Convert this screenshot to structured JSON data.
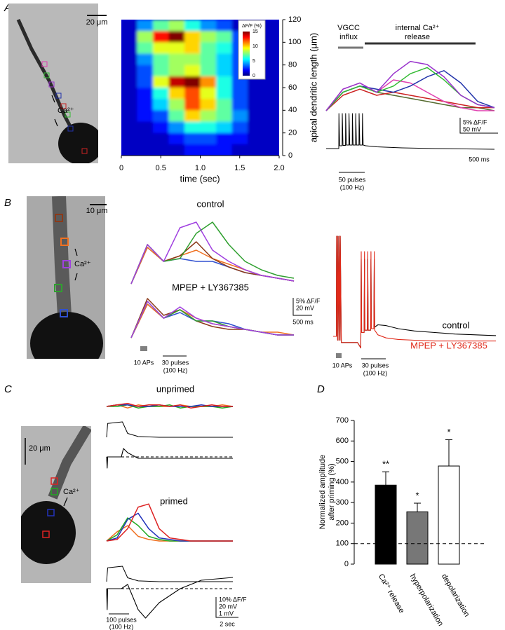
{
  "panels": [
    "A",
    "B",
    "C",
    "D"
  ],
  "images": [
    {
      "scalebar": "20 μm",
      "roi_label": "Ca²⁺"
    },
    {
      "scalebar": "10 μm",
      "roi_label": "Ca²⁺"
    },
    {
      "scalebar": "20 μm",
      "roi_label": "Ca²⁺"
    }
  ],
  "chart_data": [
    {
      "type": "heatmap",
      "xlabel": "time (sec)",
      "ylabel": "apical dendritic length (μm)",
      "xlim": [
        0,
        2
      ],
      "ylim": [
        0,
        120
      ],
      "xticks": [
        0,
        0.5,
        {
          "value": 1,
          "label": "1.0"
        },
        1.5,
        {
          "value": 2,
          "label": "2.0"
        }
      ],
      "yticks": [
        0,
        20,
        40,
        60,
        80,
        100,
        120
      ],
      "x": [
        0.1,
        0.3,
        0.5,
        0.7,
        0.9,
        1.1,
        1.3,
        1.5,
        1.7,
        1.9
      ],
      "y": [
        115,
        105,
        95,
        85,
        75,
        65,
        55,
        45,
        35,
        25,
        15,
        5
      ],
      "values": [
        [
          1,
          4,
          7,
          8,
          6,
          4,
          3,
          1,
          1,
          1
        ],
        [
          1,
          8,
          13,
          15,
          10,
          8,
          7,
          3,
          1,
          1
        ],
        [
          1,
          7,
          9,
          9,
          10,
          7,
          6,
          3,
          1,
          1
        ],
        [
          1,
          4,
          7,
          8,
          8,
          7,
          5,
          3,
          1,
          1
        ],
        [
          1,
          3,
          7,
          8,
          9,
          7,
          5,
          3,
          1,
          1
        ],
        [
          1,
          3,
          9,
          14,
          15,
          11,
          6,
          3,
          1,
          1
        ],
        [
          1,
          2,
          6,
          10,
          12,
          9,
          6,
          3,
          1,
          1
        ],
        [
          1,
          2,
          5,
          8,
          12,
          10,
          7,
          3,
          1,
          1
        ],
        [
          1,
          2,
          3,
          7,
          10,
          8,
          7,
          4,
          1,
          1
        ],
        [
          1,
          1,
          2,
          4,
          6,
          6,
          5,
          3,
          1,
          1
        ],
        [
          1,
          1,
          1,
          2,
          3,
          3,
          2,
          2,
          1,
          1
        ],
        [
          1,
          1,
          1,
          1,
          2,
          2,
          2,
          1,
          1,
          1
        ]
      ],
      "colorbar": {
        "label": "ΔF/F (%)",
        "lim": [
          0,
          15
        ],
        "ticks": [
          0,
          5,
          10,
          15
        ]
      }
    },
    {
      "type": "line",
      "annotations": {
        "vgcc": [
          "VGCC",
          "influx"
        ],
        "release": [
          "internal Ca²⁺",
          "release"
        ]
      },
      "stim_label": [
        "50 pulses",
        "(100 Hz)"
      ],
      "scale_labels": [
        "5% ΔF/F",
        "50 mV",
        "500 ms"
      ],
      "x": [
        0,
        200,
        400,
        600,
        800,
        1000,
        1200,
        1400,
        1600,
        1800,
        2000
      ],
      "series": [
        {
          "color": "#556b2f",
          "values": [
            0,
            6,
            8,
            6,
            5,
            4,
            3,
            2,
            1,
            1,
            0
          ]
        },
        {
          "color": "#cc2222",
          "values": [
            0,
            5,
            7,
            5,
            6,
            5,
            4,
            3,
            2,
            1,
            1
          ]
        },
        {
          "color": "#e040b0",
          "values": [
            0,
            7,
            9,
            6,
            10,
            9,
            6,
            3,
            1,
            0,
            0
          ]
        },
        {
          "color": "#2233aa",
          "values": [
            0,
            6,
            8,
            7,
            6,
            8,
            11,
            13,
            9,
            3,
            1
          ]
        },
        {
          "color": "#33bb33",
          "values": [
            0,
            6,
            8,
            6,
            8,
            12,
            14,
            10,
            5,
            2,
            1
          ]
        },
        {
          "color": "#9933cc",
          "values": [
            0,
            7,
            9,
            6,
            12,
            16,
            15,
            11,
            5,
            2,
            1
          ]
        }
      ],
      "voltage": {
        "color": "#000000",
        "x": [
          0,
          150,
          152,
          160,
          190,
          192,
          200,
          230,
          232,
          240,
          270,
          272,
          280,
          310,
          312,
          320,
          350,
          352,
          360,
          390,
          392,
          400,
          430,
          432,
          440,
          470,
          600,
          900,
          1300,
          2000
        ],
        "values": [
          0,
          0,
          100,
          8,
          8,
          100,
          9,
          9,
          100,
          10,
          10,
          100,
          10,
          10,
          100,
          10,
          10,
          100,
          10,
          10,
          100,
          10,
          10,
          100,
          10,
          8,
          5,
          2,
          0,
          -2
        ]
      }
    },
    {
      "type": "line",
      "title": "control",
      "x": [
        0,
        400,
        800,
        1200,
        1600,
        2000,
        2400,
        2800,
        3200,
        3600,
        4000
      ],
      "series": [
        {
          "color": "#3050d0",
          "values": [
            0,
            13,
            8,
            9,
            8,
            8,
            6,
            4,
            3,
            2,
            1
          ]
        },
        {
          "color": "#f07020",
          "values": [
            0,
            13,
            8,
            10,
            12,
            9,
            7,
            5,
            3,
            2,
            1
          ]
        },
        {
          "color": "#8b3a1a",
          "values": [
            0,
            14,
            8,
            10,
            15,
            9,
            6,
            4,
            3,
            2,
            1
          ]
        },
        {
          "color": "#30a030",
          "values": [
            0,
            14,
            8,
            9,
            18,
            22,
            14,
            8,
            5,
            3,
            2
          ]
        },
        {
          "color": "#a040e0",
          "values": [
            0,
            14,
            8,
            20,
            22,
            12,
            8,
            5,
            3,
            2,
            1
          ]
        }
      ]
    },
    {
      "type": "line",
      "title": "MPEP + LY367385",
      "stim_labels": [
        "10 APs",
        "30 pulses",
        "(100 Hz)"
      ],
      "scale_labels": [
        "5% ΔF/F",
        "20 mV",
        "500 ms"
      ],
      "x": [
        0,
        400,
        800,
        1200,
        1600,
        2000,
        2400,
        2800,
        3200,
        3600,
        4000
      ],
      "series": [
        {
          "color": "#3050d0",
          "values": [
            0,
            12,
            7,
            9,
            6,
            6,
            5,
            3,
            2,
            1,
            1
          ]
        },
        {
          "color": "#f07020",
          "values": [
            0,
            12,
            7,
            10,
            7,
            5,
            4,
            3,
            2,
            2,
            1
          ]
        },
        {
          "color": "#8b3a1a",
          "values": [
            0,
            14,
            8,
            10,
            6,
            4,
            3,
            3,
            2,
            1,
            1
          ]
        },
        {
          "color": "#30a030",
          "values": [
            0,
            13,
            7,
            10,
            6,
            6,
            4,
            3,
            2,
            1,
            1
          ]
        },
        {
          "color": "#a040e0",
          "values": [
            0,
            13,
            7,
            11,
            7,
            5,
            4,
            3,
            2,
            1,
            1
          ]
        }
      ]
    },
    {
      "type": "line",
      "stim_labels": [
        "10 APs",
        "30 pulses",
        "(100 Hz)"
      ],
      "x": [
        0,
        80,
        85,
        110,
        115,
        140,
        145,
        170,
        175,
        200,
        600,
        680,
        690,
        700,
        760,
        770,
        780,
        840,
        850,
        860,
        920,
        930,
        940,
        1000,
        1010,
        1020,
        1100,
        1300,
        1600,
        2000,
        2500,
        3000,
        3500,
        4000
      ],
      "series": [
        {
          "name": "control",
          "color": "#000000",
          "values": [
            0,
            0,
            130,
            -5,
            130,
            -5,
            130,
            -5,
            130,
            -8,
            -8,
            -15,
            100,
            5,
            5,
            100,
            8,
            8,
            100,
            8,
            8,
            100,
            10,
            10,
            100,
            12,
            15,
            14,
            10,
            7,
            5,
            3,
            2,
            1
          ]
        },
        {
          "name": "MPEP + LY367385",
          "color": "#e02a1a",
          "values": [
            0,
            0,
            130,
            -5,
            130,
            -5,
            130,
            -5,
            130,
            -8,
            -8,
            -15,
            110,
            5,
            5,
            110,
            8,
            8,
            110,
            8,
            8,
            110,
            10,
            10,
            110,
            8,
            2,
            -2,
            -4,
            -5,
            -6,
            -6,
            -6,
            -6
          ]
        }
      ]
    },
    {
      "type": "line",
      "title": "unprimed",
      "x": [
        0,
        1,
        2,
        3,
        4,
        5,
        6,
        7,
        8,
        9,
        10,
        11,
        12
      ],
      "series": [
        {
          "color": "#f07020",
          "values": [
            0,
            1,
            -1,
            1,
            0,
            0,
            0,
            1,
            0,
            0,
            0,
            1,
            0
          ]
        },
        {
          "color": "#22aa22",
          "values": [
            0,
            0,
            1,
            -1,
            0,
            0,
            1,
            -1,
            0,
            0,
            0,
            -1,
            0
          ]
        },
        {
          "color": "#2233bb",
          "values": [
            0,
            1,
            1,
            0,
            0,
            1,
            0,
            0,
            0,
            1,
            0,
            0,
            0
          ]
        },
        {
          "color": "#dd2222",
          "values": [
            0,
            1,
            2,
            0,
            1,
            1,
            0,
            1,
            -1,
            0,
            1,
            0,
            0
          ]
        }
      ],
      "voltage": {
        "color": "#000000",
        "x": [
          0,
          0.1,
          1.5,
          2,
          3,
          5,
          8,
          12
        ],
        "values": [
          0,
          18,
          20,
          5,
          1,
          0,
          0,
          0
        ]
      },
      "current": {
        "color": "#000000",
        "x": [
          0,
          0.05,
          0.1,
          1.4,
          1.6,
          2,
          3,
          5,
          8,
          12
        ],
        "values": [
          0,
          -0.8,
          0,
          0,
          0.6,
          0.3,
          -0.1,
          -0.1,
          -0.1,
          -0.1
        ],
        "baseline": 0
      }
    },
    {
      "type": "line",
      "title": "primed",
      "stim_label": [
        "100 pulses",
        "(100 Hz)"
      ],
      "scale_labels": [
        "10% ΔF/F",
        "20 mV",
        "1 mV",
        "2 sec"
      ],
      "x": [
        0,
        1,
        2,
        3,
        4,
        5,
        6,
        7,
        8,
        9,
        10,
        11,
        12
      ],
      "series": [
        {
          "color": "#f07020",
          "values": [
            0,
            6,
            10,
            3,
            1,
            0,
            0,
            0,
            0,
            0,
            0,
            0,
            0
          ]
        },
        {
          "color": "#22aa22",
          "values": [
            0,
            4,
            15,
            10,
            3,
            1,
            0,
            0,
            0,
            0,
            0,
            0,
            0
          ]
        },
        {
          "color": "#2233bb",
          "values": [
            0,
            2,
            14,
            18,
            8,
            2,
            1,
            0,
            0,
            0,
            0,
            0,
            0
          ]
        },
        {
          "color": "#dd2222",
          "values": [
            0,
            1,
            8,
            22,
            24,
            8,
            2,
            1,
            0,
            0,
            0,
            0,
            0
          ]
        }
      ],
      "voltage": {
        "color": "#000000",
        "x": [
          0,
          0.1,
          1.5,
          2,
          3,
          5,
          8,
          12
        ],
        "values": [
          0,
          18,
          20,
          5,
          1,
          0,
          0,
          0
        ]
      },
      "current": {
        "color": "#000000",
        "x": [
          0,
          0.05,
          0.1,
          1.4,
          2,
          3,
          3.7,
          5,
          7,
          9,
          12
        ],
        "values": [
          0,
          -1.5,
          0,
          0,
          0.3,
          -1.5,
          -2.1,
          -1,
          0,
          0.6,
          0.8
        ],
        "baseline": 0
      }
    },
    {
      "type": "bar",
      "ylabel": [
        "Normalized amplitude",
        "after priming (%)"
      ],
      "categories": [
        "Ca²⁺ release",
        "hyperpolarization",
        "depolarization"
      ],
      "values": [
        385,
        255,
        478
      ],
      "errors": [
        65,
        42,
        128
      ],
      "colors": [
        "#000000",
        "#777777",
        "#ffffff"
      ],
      "significance": [
        "**",
        "*",
        "*"
      ],
      "ylim": [
        0,
        700
      ],
      "yticks": [
        0,
        100,
        200,
        300,
        400,
        500,
        600,
        700
      ],
      "reference_line": 100
    }
  ]
}
